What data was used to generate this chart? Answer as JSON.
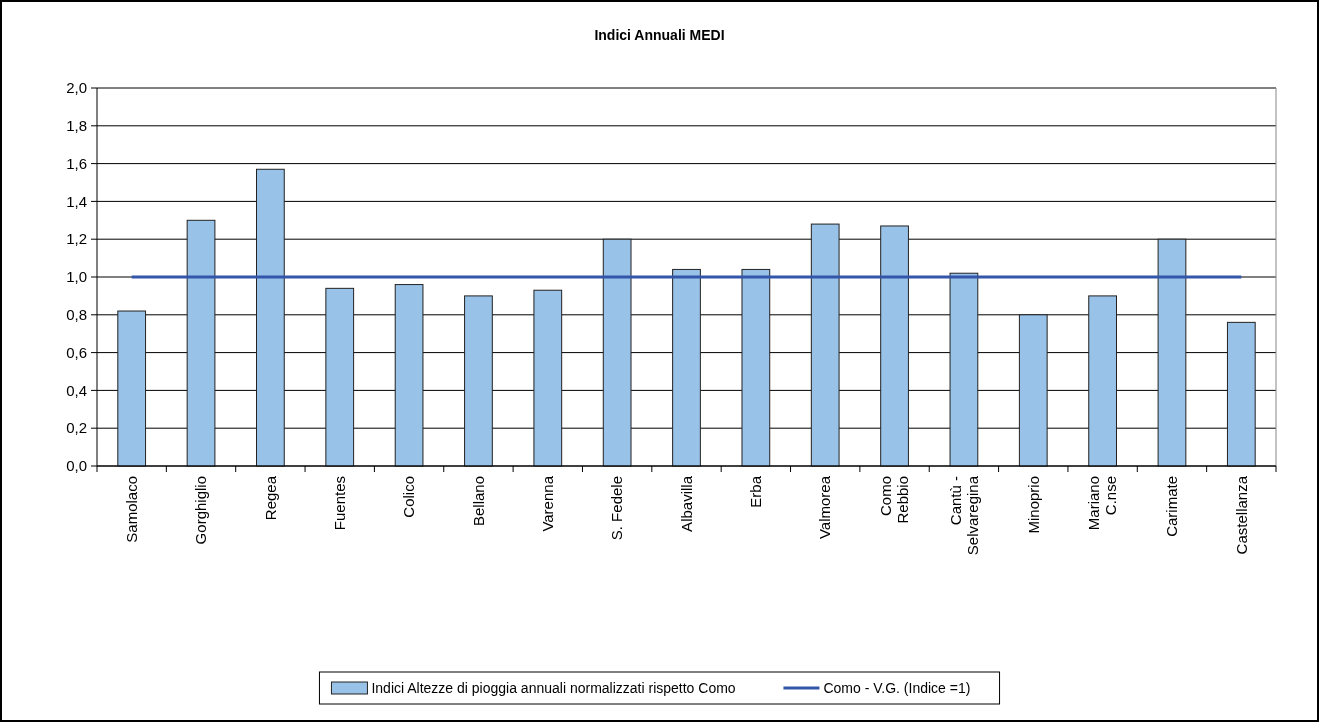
{
  "chart_data": {
    "type": "bar",
    "title": "Indici Annuali MEDI",
    "categories": [
      "Samolaco",
      "Gorghiglio",
      "Regea",
      "Fuentes",
      "Colico",
      "Bellano",
      "Varenna",
      "S. Fedele",
      "Albavilla",
      "Erba",
      "Valmorea",
      "Como\nRebbio",
      "Cantù -\nSelvaregina",
      "Minoprio",
      "Mariano\nC.nse",
      "Carimate",
      "Castellanza"
    ],
    "series": [
      {
        "name": "Indici Altezze di pioggia annuali normalizzati rispetto Como",
        "color": "#99c2e8",
        "values": [
          0.82,
          1.3,
          1.57,
          0.94,
          0.96,
          0.9,
          0.93,
          1.2,
          1.04,
          1.04,
          1.28,
          1.27,
          1.02,
          0.8,
          0.9,
          1.2,
          0.76
        ]
      },
      {
        "name": "Como - V.G. (Indice =1)",
        "type": "line",
        "color": "#3355aa",
        "values": [
          1,
          1,
          1,
          1,
          1,
          1,
          1,
          1,
          1,
          1,
          1,
          1,
          1,
          1,
          1,
          1,
          1
        ]
      }
    ],
    "ylim": [
      0,
      2
    ],
    "yticks": [
      {
        "value": 0,
        "label": "0,0"
      },
      {
        "value": 0.2,
        "label": "0,2"
      },
      {
        "value": 0.4,
        "label": "0,4"
      },
      {
        "value": 0.6,
        "label": "0,6"
      },
      {
        "value": 0.8,
        "label": "0,8"
      },
      {
        "value": 1,
        "label": "1,0"
      },
      {
        "value": 1.2,
        "label": "1,2"
      },
      {
        "value": 1.4,
        "label": "1,4"
      },
      {
        "value": 1.6,
        "label": "1,6"
      },
      {
        "value": 1.8,
        "label": "1,8"
      },
      {
        "value": 2,
        "label": "2,0"
      }
    ],
    "grid": "y",
    "legend": "bottom"
  }
}
